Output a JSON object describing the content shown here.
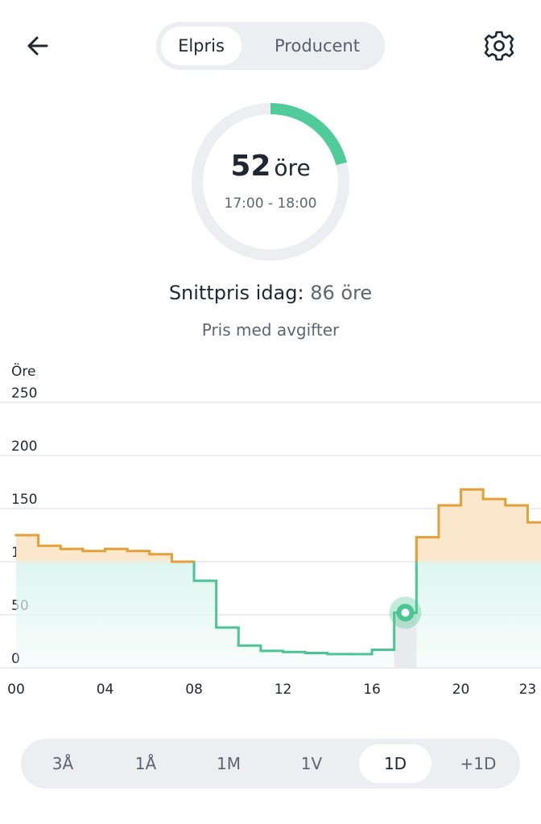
{
  "header": {
    "back_icon": "arrow-left-icon",
    "tabs": [
      {
        "label": "Elpris",
        "active": true
      },
      {
        "label": "Producent",
        "active": false
      }
    ],
    "settings_icon": "gear-icon"
  },
  "current": {
    "price": "52",
    "unit": "öre",
    "time_range": "17:00 - 18:00",
    "ring_fill_fraction": 0.21,
    "ring_color": "#4fcc9a"
  },
  "summary": {
    "avg_label": "Snittpris idag:",
    "avg_value": "86 öre",
    "subtitle": "Pris med avgifter"
  },
  "chart_data": {
    "type": "line",
    "ylabel": "Öre",
    "ylim": [
      0,
      250
    ],
    "y_ticks": [
      "250",
      "200",
      "150",
      "100",
      "50",
      "0"
    ],
    "y_tick_values": [
      250,
      200,
      150,
      100,
      50,
      0
    ],
    "x_ticks": [
      "00",
      "04",
      "08",
      "12",
      "16",
      "20",
      "23"
    ],
    "x_tick_values": [
      0,
      4,
      8,
      12,
      16,
      20,
      23
    ],
    "xlim": [
      0,
      23.6
    ],
    "step": true,
    "hours": [
      0,
      1,
      2,
      3,
      4,
      5,
      6,
      7,
      8,
      9,
      10,
      11,
      12,
      13,
      14,
      15,
      16,
      17,
      18,
      19,
      20,
      21,
      22,
      23
    ],
    "values": [
      125,
      115,
      112,
      110,
      112,
      110,
      107,
      100,
      82,
      38,
      21,
      16,
      15,
      14,
      13,
      13,
      17,
      52,
      123,
      153,
      168,
      159,
      153,
      137
    ],
    "selected_hour": 17,
    "selected_value": 52,
    "threshold": 100,
    "colors": {
      "high": "#e3a03a",
      "low": "#4cc596",
      "high_fill": "#fbe7cc",
      "low_fill": "#dff6f0",
      "grid": "#e5e7ea"
    }
  },
  "ranges": {
    "items": [
      {
        "label": "3Å",
        "active": false
      },
      {
        "label": "1Å",
        "active": false
      },
      {
        "label": "1M",
        "active": false
      },
      {
        "label": "1V",
        "active": false
      },
      {
        "label": "1D",
        "active": true
      },
      {
        "label": "+1D",
        "active": false
      }
    ]
  }
}
